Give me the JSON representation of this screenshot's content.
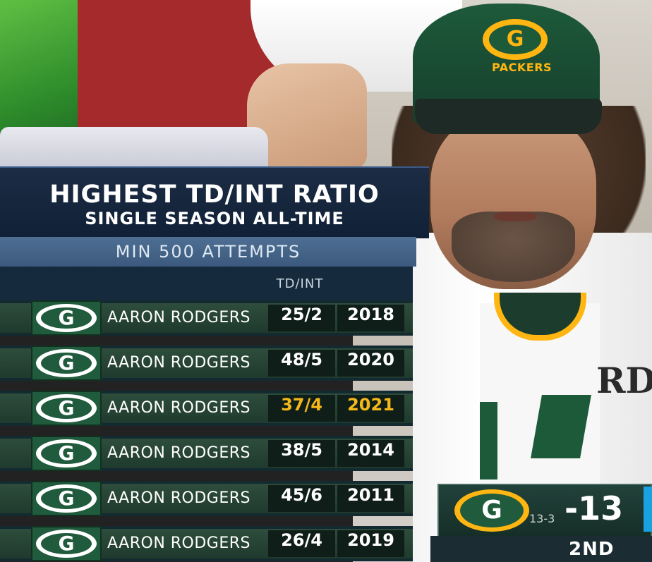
{
  "graphic": {
    "title_line1": "HIGHEST TD/INT RATIO",
    "title_line2": "SINGLE SEASON ALL-TIME",
    "subtitle": "MIN 500 ATTEMPTS",
    "column_header": "TD/INT",
    "highlight_color": "#f5b819",
    "team_logo_letter": "G",
    "rows": [
      {
        "name": "AARON RODGERS",
        "ratio": "25/2",
        "year": "2018",
        "highlight": false
      },
      {
        "name": "AARON RODGERS",
        "ratio": "48/5",
        "year": "2020",
        "highlight": false
      },
      {
        "name": "AARON RODGERS",
        "ratio": "37/4",
        "year": "2021",
        "highlight": true
      },
      {
        "name": "AARON RODGERS",
        "ratio": "38/5",
        "year": "2014",
        "highlight": false
      },
      {
        "name": "AARON RODGERS",
        "ratio": "45/6",
        "year": "2011",
        "highlight": false
      },
      {
        "name": "AARON RODGERS",
        "ratio": "26/4",
        "year": "2019",
        "highlight": false
      }
    ]
  },
  "scene": {
    "cap_logo_letter": "G",
    "cap_text": "PACKERS",
    "towel_text": "RD"
  },
  "score_bug": {
    "logo_letter": "G",
    "record": "13-3",
    "score": "-13",
    "quarter": "2ND"
  }
}
